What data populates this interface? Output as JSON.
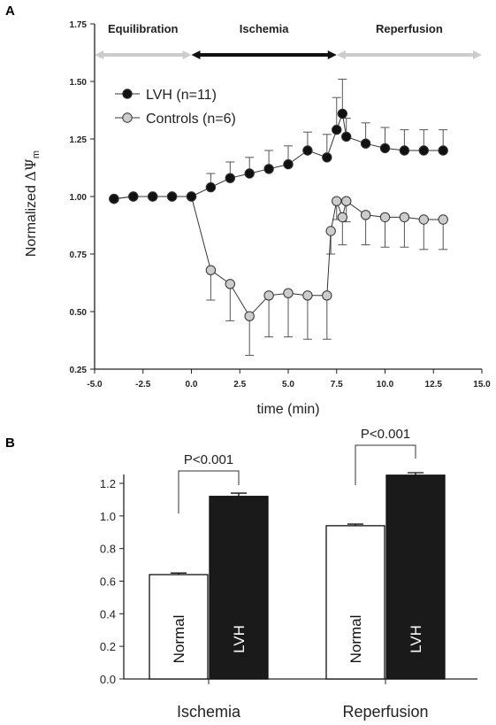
{
  "panel_a_letter": "A",
  "panel_b_letter": "B",
  "chart_data": [
    {
      "type": "line",
      "panel": "A",
      "xlabel": "time (min)",
      "ylabel_main": "Normalized ",
      "ylabel_symbol": "ΔΨ",
      "ylabel_sub": "m",
      "xlim": [
        -5.0,
        15.0
      ],
      "ylim": [
        0.25,
        1.75
      ],
      "x_ticks": [
        "-5.0",
        "-2.5",
        "0.0",
        "2.5",
        "5.0",
        "7.5",
        "10.0",
        "12.5",
        "15.0"
      ],
      "y_ticks": [
        "0.25",
        "0.50",
        "0.75",
        "1.00",
        "1.25",
        "1.50",
        "1.75"
      ],
      "phases": [
        {
          "label": "Equilibration",
          "start": -5.0,
          "end": 0.0,
          "color": "#cccccc"
        },
        {
          "label": "Ischemia",
          "start": 0.0,
          "end": 7.5,
          "color": "#111111"
        },
        {
          "label": "Reperfusion",
          "start": 7.5,
          "end": 15.0,
          "color": "#cccccc"
        }
      ],
      "legend_position": "top-left",
      "series": [
        {
          "name": "LVH (n=11)",
          "marker_fill": "#111111",
          "x": [
            -4,
            -3,
            -2,
            -1,
            0,
            1,
            2,
            3,
            4,
            5,
            6,
            7,
            7.5,
            7.8,
            8,
            9,
            10,
            11,
            12,
            13
          ],
          "y": [
            0.99,
            1.0,
            1.0,
            1.0,
            1.0,
            1.04,
            1.08,
            1.1,
            1.12,
            1.14,
            1.2,
            1.17,
            1.29,
            1.36,
            1.26,
            1.23,
            1.21,
            1.2,
            1.2,
            1.2
          ],
          "err": [
            0,
            0,
            0,
            0,
            0,
            0.06,
            0.07,
            0.07,
            0.08,
            0.08,
            0.08,
            0.1,
            0.14,
            0.15,
            0.08,
            0.09,
            0.09,
            0.09,
            0.09,
            0.09
          ]
        },
        {
          "name": "Controls (n=6)",
          "marker_fill": "#cccccc",
          "x": [
            -4,
            -3,
            -2,
            -1,
            0,
            1,
            2,
            3,
            4,
            5,
            6,
            7,
            7.2,
            7.5,
            7.8,
            8,
            9,
            10,
            11,
            12,
            13
          ],
          "y": [
            0.99,
            1.0,
            1.0,
            1.0,
            1.0,
            0.68,
            0.62,
            0.48,
            0.57,
            0.58,
            0.57,
            0.57,
            0.85,
            0.98,
            0.91,
            0.98,
            0.92,
            0.91,
            0.91,
            0.9,
            0.9
          ],
          "err": [
            0,
            0,
            0,
            0,
            0,
            0.13,
            0.16,
            0.17,
            0.18,
            0.19,
            0.19,
            0.19,
            0.1,
            0.08,
            0.12,
            0.09,
            0.13,
            0.13,
            0.13,
            0.13,
            0.13
          ]
        }
      ]
    },
    {
      "type": "bar",
      "panel": "B",
      "ylim": [
        0.0,
        1.2
      ],
      "y_ticks": [
        "0.0",
        "0.2",
        "0.4",
        "0.6",
        "0.8",
        "1.0",
        "1.2"
      ],
      "groups": [
        "Ischemia",
        "Reperfusion"
      ],
      "bars": [
        {
          "group": "Ischemia",
          "label": "Normal",
          "value": 0.64,
          "err": 0.01,
          "fill": "#ffffff",
          "text_color": "#111111"
        },
        {
          "group": "Ischemia",
          "label": "LVH",
          "value": 1.12,
          "err": 0.02,
          "fill": "#1a1a1a",
          "text_color": "#ffffff"
        },
        {
          "group": "Reperfusion",
          "label": "Normal",
          "value": 0.94,
          "err": 0.01,
          "fill": "#ffffff",
          "text_color": "#111111"
        },
        {
          "group": "Reperfusion",
          "label": "LVH",
          "value": 1.25,
          "err": 0.015,
          "fill": "#1a1a1a",
          "text_color": "#ffffff"
        }
      ],
      "significance": [
        {
          "group": "Ischemia",
          "label": "P<0.001"
        },
        {
          "group": "Reperfusion",
          "label": "P<0.001"
        }
      ]
    }
  ]
}
